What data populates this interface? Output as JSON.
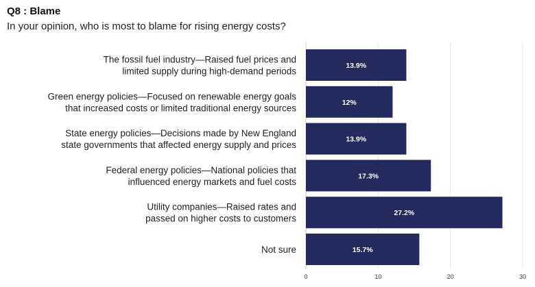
{
  "header": {
    "title": "Q8 : Blame",
    "subtitle": "In your opinion, who is most to blame for rising energy costs?"
  },
  "colors": {
    "bar": "#252a5e",
    "grid": "#e6e6e6",
    "axis": "#cfcfcf"
  },
  "chart_data": {
    "type": "bar",
    "orientation": "horizontal",
    "title": "Q8 : Blame",
    "subtitle": "In your opinion, who is most to blame for rising energy costs?",
    "categories": [
      [
        "The fossil fuel industry—Raised fuel prices and",
        "limited supply during high-demand periods"
      ],
      [
        "Green energy policies—Focused on renewable energy goals",
        "that increased costs or limited traditional energy sources"
      ],
      [
        "State energy policies—Decisions made by New England",
        "state governments that affected energy supply and prices"
      ],
      [
        "Federal energy policies—National policies that",
        "influenced energy markets and fuel costs"
      ],
      [
        "Utility companies—Raised rates and",
        "passed on higher costs to customers"
      ],
      [
        "Not sure"
      ]
    ],
    "values": [
      13.9,
      12,
      13.9,
      17.3,
      27.2,
      15.7
    ],
    "value_labels": [
      "13.9%",
      "12%",
      "13.9%",
      "17.3%",
      "27.2%",
      "15.7%"
    ],
    "xlim": [
      0,
      30
    ],
    "xticks": [
      0,
      10,
      20,
      30
    ],
    "xtick_labels": [
      "0",
      "10",
      "20",
      "30"
    ],
    "grid": true,
    "legend": "none"
  }
}
